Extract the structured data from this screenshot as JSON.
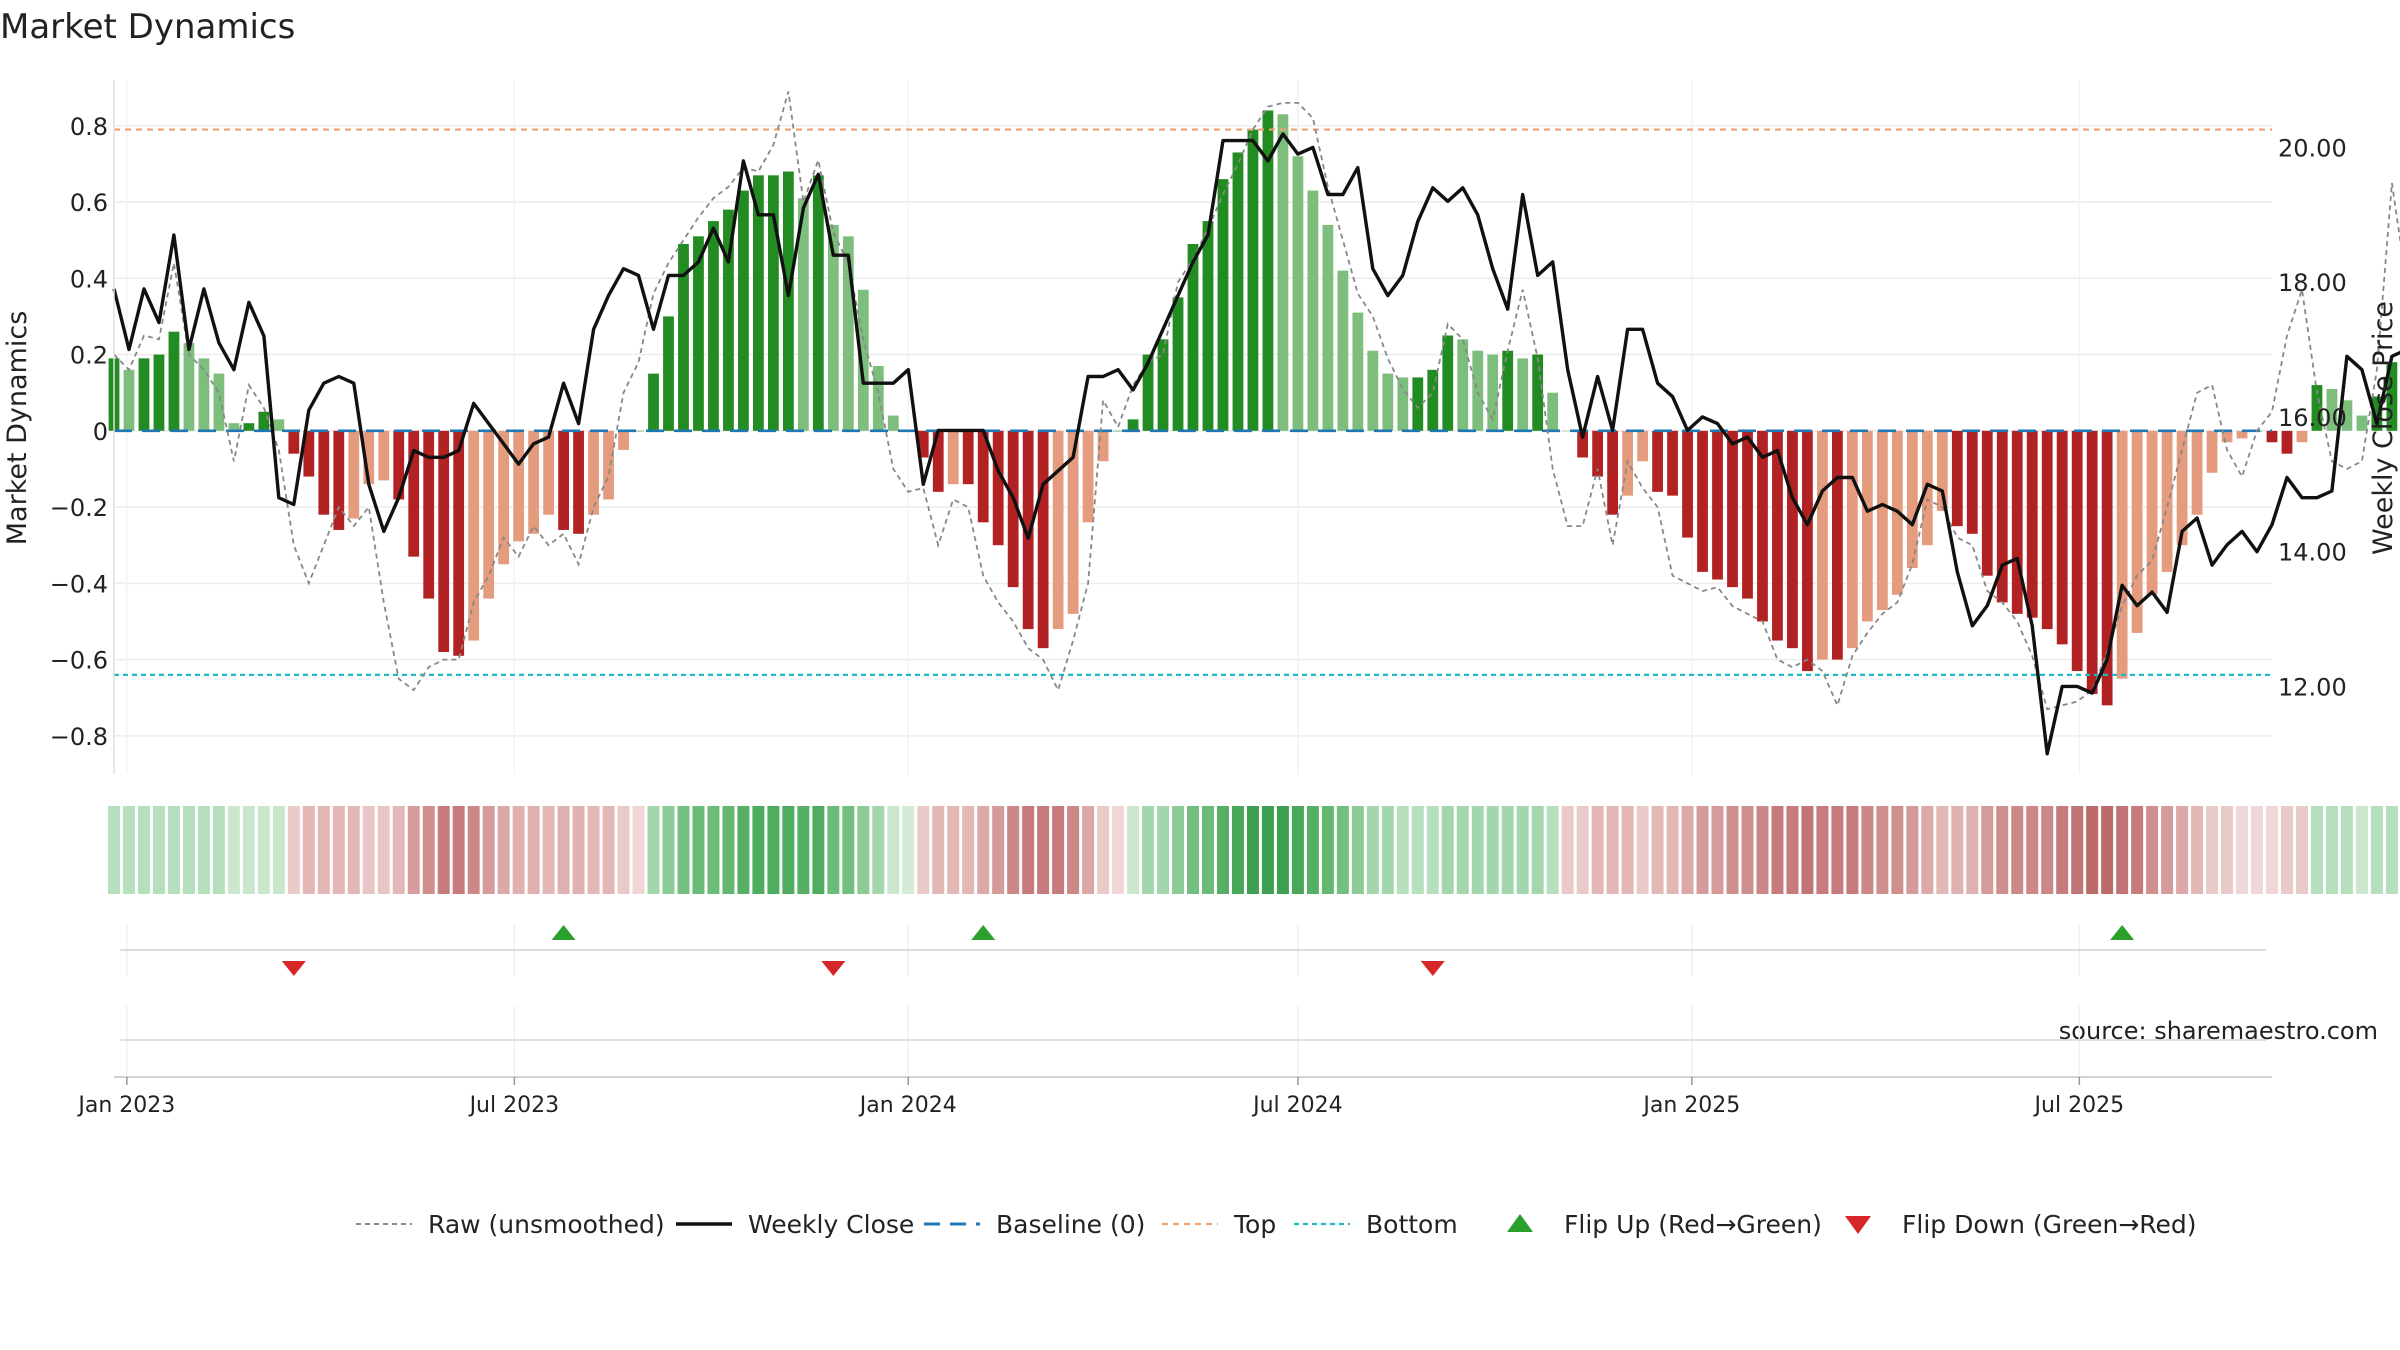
{
  "chart_data": {
    "type": "bar",
    "title": "Market Dynamics",
    "ylabel_left": "Market Dynamics",
    "ylabel_right": "Weekly Close Price",
    "ylim_left": [
      -0.9,
      0.92
    ],
    "yticks_left": [
      0.8,
      0.6,
      0.4,
      0.2,
      0,
      -0.2,
      -0.4,
      -0.6,
      -0.8
    ],
    "ytick_labels_left": [
      "0.8",
      "0.6",
      "0.4",
      "0.2",
      "0",
      "−0.2",
      "−0.4",
      "−0.6",
      "−0.8"
    ],
    "ylim_right": [
      10.7,
      21.0
    ],
    "yticks_right": [
      20,
      18,
      16,
      14,
      12
    ],
    "ytick_labels_right": [
      "20.00",
      "18.00",
      "16.00",
      "14.00",
      "12.00"
    ],
    "x_start": "2022-12-26",
    "x_end": "2025-09-29",
    "xtick_dates": [
      "2023-01-01",
      "2023-07-01",
      "2024-01-01",
      "2024-07-01",
      "2025-01-01",
      "2025-07-01"
    ],
    "xtick_labels": [
      "Jan 2023",
      "Jul 2023",
      "Jan 2024",
      "Jul 2024",
      "Jan 2025",
      "Jul 2025"
    ],
    "top_line": 0.79,
    "bottom_line": -0.64,
    "baseline": 0,
    "first_week": "2022-12-26",
    "bars": [
      0.19,
      0.16,
      0.19,
      0.2,
      0.26,
      0.23,
      0.19,
      0.15,
      0.02,
      0.02,
      0.05,
      0.03,
      -0.06,
      -0.12,
      -0.22,
      -0.26,
      -0.23,
      -0.14,
      -0.13,
      -0.18,
      -0.33,
      -0.44,
      -0.58,
      -0.59,
      -0.55,
      -0.44,
      -0.35,
      -0.29,
      -0.27,
      -0.22,
      -0.26,
      -0.27,
      -0.22,
      -0.18,
      -0.05,
      0.0,
      0.15,
      0.3,
      0.49,
      0.51,
      0.55,
      0.58,
      0.63,
      0.67,
      0.67,
      0.68,
      0.61,
      0.67,
      0.54,
      0.51,
      0.37,
      0.17,
      0.04,
      0.0,
      -0.07,
      -0.16,
      -0.14,
      -0.14,
      -0.24,
      -0.3,
      -0.41,
      -0.52,
      -0.57,
      -0.52,
      -0.48,
      -0.24,
      -0.08,
      0.0,
      0.03,
      0.2,
      0.24,
      0.35,
      0.49,
      0.55,
      0.66,
      0.73,
      0.79,
      0.84,
      0.83,
      0.72,
      0.63,
      0.54,
      0.42,
      0.31,
      0.21,
      0.15,
      0.14,
      0.14,
      0.16,
      0.25,
      0.24,
      0.21,
      0.2,
      0.21,
      0.19,
      0.2,
      0.1,
      0.0,
      -0.07,
      -0.12,
      -0.22,
      -0.17,
      -0.08,
      -0.16,
      -0.17,
      -0.28,
      -0.37,
      -0.39,
      -0.41,
      -0.44,
      -0.5,
      -0.55,
      -0.57,
      -0.63,
      -0.6,
      -0.6,
      -0.57,
      -0.5,
      -0.47,
      -0.43,
      -0.36,
      -0.3,
      -0.21,
      -0.25,
      -0.27,
      -0.38,
      -0.45,
      -0.48,
      -0.49,
      -0.52,
      -0.56,
      -0.63,
      -0.69,
      -0.72,
      -0.65,
      -0.53,
      -0.43,
      -0.37,
      -0.3,
      -0.22,
      -0.11,
      -0.03,
      -0.02,
      0.0,
      -0.03,
      -0.06,
      -0.03,
      0.12,
      0.11,
      0.08,
      0.04,
      0.09,
      0.18,
      0.24,
      0.36,
      0.27
    ],
    "raw": [
      0.2,
      0.16,
      0.25,
      0.24,
      0.44,
      0.2,
      0.16,
      0.1,
      -0.08,
      0.12,
      0.06,
      -0.05,
      -0.3,
      -0.4,
      -0.3,
      -0.2,
      -0.25,
      -0.2,
      -0.45,
      -0.65,
      -0.68,
      -0.62,
      -0.6,
      -0.6,
      -0.45,
      -0.38,
      -0.28,
      -0.33,
      -0.25,
      -0.3,
      -0.27,
      -0.35,
      -0.2,
      -0.12,
      0.1,
      0.18,
      0.36,
      0.44,
      0.5,
      0.56,
      0.61,
      0.64,
      0.69,
      0.68,
      0.75,
      0.89,
      0.6,
      0.71,
      0.52,
      0.44,
      0.24,
      0.1,
      -0.1,
      -0.16,
      -0.15,
      -0.3,
      -0.18,
      -0.2,
      -0.38,
      -0.45,
      -0.5,
      -0.57,
      -0.6,
      -0.68,
      -0.55,
      -0.4,
      0.08,
      0.01,
      0.12,
      0.18,
      0.2,
      0.39,
      0.45,
      0.53,
      0.62,
      0.7,
      0.79,
      0.85,
      0.86,
      0.86,
      0.82,
      0.64,
      0.5,
      0.36,
      0.3,
      0.19,
      0.11,
      0.06,
      0.1,
      0.28,
      0.24,
      0.1,
      0.03,
      0.21,
      0.37,
      0.19,
      -0.1,
      -0.25,
      -0.25,
      -0.1,
      -0.3,
      -0.08,
      -0.15,
      -0.2,
      -0.38,
      -0.4,
      -0.42,
      -0.41,
      -0.46,
      -0.48,
      -0.5,
      -0.6,
      -0.62,
      -0.6,
      -0.63,
      -0.72,
      -0.59,
      -0.53,
      -0.48,
      -0.45,
      -0.35,
      -0.18,
      -0.2,
      -0.28,
      -0.3,
      -0.42,
      -0.45,
      -0.5,
      -0.59,
      -0.73,
      -0.72,
      -0.71,
      -0.68,
      -0.58,
      -0.46,
      -0.38,
      -0.34,
      -0.2,
      -0.05,
      0.1,
      0.12,
      -0.05,
      -0.12,
      0.0,
      0.05,
      0.25,
      0.37,
      0.1,
      -0.08,
      -0.1,
      -0.08,
      0.16,
      0.65,
      0.38,
      0.1,
      0.37,
      0.36
    ],
    "close": [
      17.9,
      17.0,
      17.9,
      17.4,
      18.7,
      17.0,
      17.9,
      17.1,
      16.7,
      17.7,
      17.2,
      14.8,
      14.7,
      16.1,
      16.5,
      16.6,
      16.5,
      15.0,
      14.3,
      14.8,
      15.5,
      15.4,
      15.4,
      15.5,
      16.2,
      15.9,
      15.6,
      15.3,
      15.6,
      15.7,
      16.5,
      15.9,
      17.3,
      17.8,
      18.2,
      18.1,
      17.3,
      18.1,
      18.1,
      18.3,
      18.8,
      18.3,
      19.8,
      19.0,
      19.0,
      17.8,
      19.1,
      19.6,
      18.4,
      18.4,
      16.5,
      16.5,
      16.5,
      16.7,
      15.0,
      15.8,
      15.8,
      15.8,
      15.8,
      15.2,
      14.8,
      14.2,
      15.0,
      15.2,
      15.4,
      16.6,
      16.6,
      16.7,
      16.4,
      16.8,
      17.3,
      17.8,
      18.3,
      18.7,
      20.1,
      20.1,
      20.1,
      19.8,
      20.2,
      19.9,
      20.0,
      19.3,
      19.3,
      19.7,
      18.2,
      17.8,
      18.1,
      18.9,
      19.4,
      19.2,
      19.4,
      19.0,
      18.2,
      17.6,
      19.3,
      18.1,
      18.3,
      16.7,
      15.7,
      16.6,
      15.8,
      17.3,
      17.3,
      16.5,
      16.3,
      15.8,
      16.0,
      15.9,
      15.6,
      15.7,
      15.4,
      15.5,
      14.8,
      14.4,
      14.9,
      15.1,
      15.1,
      14.6,
      14.7,
      14.6,
      14.4,
      15.0,
      14.9,
      13.7,
      12.9,
      13.2,
      13.8,
      13.9,
      12.9,
      11.0,
      12.0,
      12.0,
      11.9,
      12.4,
      13.5,
      13.2,
      13.4,
      13.1,
      14.3,
      14.5,
      13.8,
      14.1,
      14.3,
      14.0,
      14.4,
      15.1,
      14.8,
      14.8,
      14.9,
      16.9,
      16.7,
      15.9,
      16.9,
      17.0
    ],
    "strip_colors": [
      "#b5dfbd",
      "#b5dfbd",
      "#b5dfbd",
      "#b5dfbd",
      "#b5dfbd",
      "#b5dfbd",
      "#b5dfbd",
      "#b5dfbd",
      "#cae7ce",
      "#cae7ce",
      "#cae7ce",
      "#cae7ce",
      "#eac9c9",
      "#e3b7b6",
      "#e3b7b6",
      "#e3b7b6",
      "#e3b7b6",
      "#e9c6c6",
      "#e9c6c6",
      "#e3b7b6",
      "#d79d9d",
      "#d08f8f",
      "#c77b7b",
      "#c77b7b",
      "#cc8787",
      "#d59a9a",
      "#dca8a8",
      "#e0b1b1",
      "#e0b1b1",
      "#e3b7b6",
      "#e0b1b1",
      "#e0b1b1",
      "#e3b7b6",
      "#e3b7b6",
      "#eac9c9",
      "#f0d6d6",
      "#a3d6ab",
      "#8ccb96",
      "#74bf80",
      "#6cbc79",
      "#6cbc79",
      "#63b771",
      "#55b064",
      "#4ead5e",
      "#4ead5e",
      "#4ead5e",
      "#55b064",
      "#4ead5e",
      "#6cbc79",
      "#74bf80",
      "#8ccb96",
      "#a3d6ab",
      "#cae7ce",
      "#d3ebd6",
      "#eac9c9",
      "#e3b7b6",
      "#e3b7b6",
      "#e3b7b6",
      "#dca8a8",
      "#d59a9a",
      "#cc8787",
      "#c77b7b",
      "#c77b7b",
      "#c77b7b",
      "#cc8787",
      "#dca8a8",
      "#eac9c9",
      "#f0d6d6",
      "#cae7ce",
      "#a3d6ab",
      "#a3d6ab",
      "#8ccb96",
      "#74bf80",
      "#6cbc79",
      "#55b064",
      "#48a85a",
      "#3d9f50",
      "#3d9f50",
      "#3d9f50",
      "#48a85a",
      "#55b064",
      "#63b771",
      "#74bf80",
      "#8ccb96",
      "#a3d6ab",
      "#a3d6ab",
      "#b5dfbd",
      "#b5dfbd",
      "#b5dfbd",
      "#a3d6ab",
      "#a3d6ab",
      "#a3d6ab",
      "#a3d6ab",
      "#a3d6ab",
      "#a3d6ab",
      "#a3d6ab",
      "#b5dfbd",
      "#eac9c9",
      "#eac9c9",
      "#e3b7b6",
      "#e3b7b6",
      "#e3b7b6",
      "#eac9c9",
      "#e3b7b6",
      "#e3b7b6",
      "#dca8a8",
      "#d59a9a",
      "#d59a9a",
      "#d08f8f",
      "#d08f8f",
      "#cc8787",
      "#c77b7b",
      "#c77b7b",
      "#c27474",
      "#c77b7b",
      "#c77b7b",
      "#c77b7b",
      "#cc8787",
      "#d08f8f",
      "#d08f8f",
      "#d59a9a",
      "#dca8a8",
      "#e3b7b6",
      "#e0b1b1",
      "#e0b1b1",
      "#d59a9a",
      "#d08f8f",
      "#cc8787",
      "#cc8787",
      "#cc8787",
      "#c77b7b",
      "#c27474",
      "#bc6a6a",
      "#bc6a6a",
      "#c27474",
      "#c77b7b",
      "#d08f8f",
      "#d59a9a",
      "#dca8a8",
      "#e3b7b6",
      "#eac9c9",
      "#eac9c9",
      "#f0d6d6",
      "#f0d6d6",
      "#f0d6d6",
      "#eac9c9",
      "#eac9c9",
      "#b5dfbd",
      "#b5dfbd",
      "#b5dfbd",
      "#cae7ce",
      "#b5dfbd",
      "#b5dfbd",
      "#a3d6ab",
      "#a3d6ab",
      "#a3d6ab"
    ],
    "flip_up": [
      "2023-07-24",
      "2024-02-05",
      "2025-07-21"
    ],
    "flip_down": [
      "2023-03-20",
      "2023-11-27",
      "2024-09-02"
    ],
    "annotation": "source: sharemaestro.com",
    "legend_position": "bottom",
    "legend": [
      {
        "key": "raw",
        "label": "Raw (unsmoothed)"
      },
      {
        "key": "close",
        "label": "Weekly Close"
      },
      {
        "key": "baseline",
        "label": "Baseline (0)"
      },
      {
        "key": "top",
        "label": "Top"
      },
      {
        "key": "bottom",
        "label": "Bottom"
      },
      {
        "key": "flipup",
        "label": "Flip Up (Red→Green)"
      },
      {
        "key": "flipdown",
        "label": "Flip Down (Green→Red)"
      }
    ]
  },
  "colors": {
    "green_strong": "#228b22",
    "green_light": "#7dbe7d",
    "red_strong": "#b22222",
    "red_light": "#e59b7e",
    "close_line": "#111111",
    "raw_line": "#888888",
    "baseline": "#1f77b4",
    "top": "#f0a070",
    "bottom": "#20b8c8",
    "flip_up": "#2ca02c",
    "flip_down": "#d62728"
  }
}
